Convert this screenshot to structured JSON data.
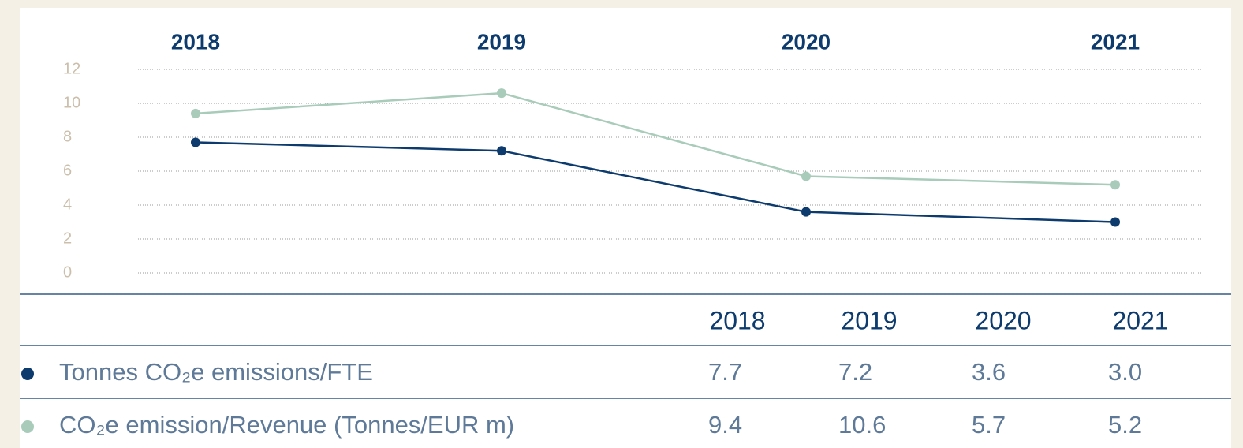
{
  "chart_data": {
    "type": "line",
    "categories": [
      "2018",
      "2019",
      "2020",
      "2021"
    ],
    "series": [
      {
        "name": "Tonnes CO₂e emissions/FTE",
        "color": "#0d3b6e",
        "values": [
          7.7,
          7.2,
          3.6,
          3.0
        ],
        "value_labels": [
          "7.7",
          "7.2",
          "3.6",
          "3.0"
        ]
      },
      {
        "name": "CO₂e emission/Revenue (Tonnes/EUR m)",
        "color": "#a8cbba",
        "values": [
          9.4,
          10.6,
          5.7,
          5.2
        ],
        "value_labels": [
          "9.4",
          "10.6",
          "5.7",
          "5.2"
        ]
      }
    ],
    "ylim": [
      0,
      12
    ],
    "yticks": [
      0,
      2,
      4,
      6,
      8,
      10,
      12
    ],
    "grid": true
  }
}
